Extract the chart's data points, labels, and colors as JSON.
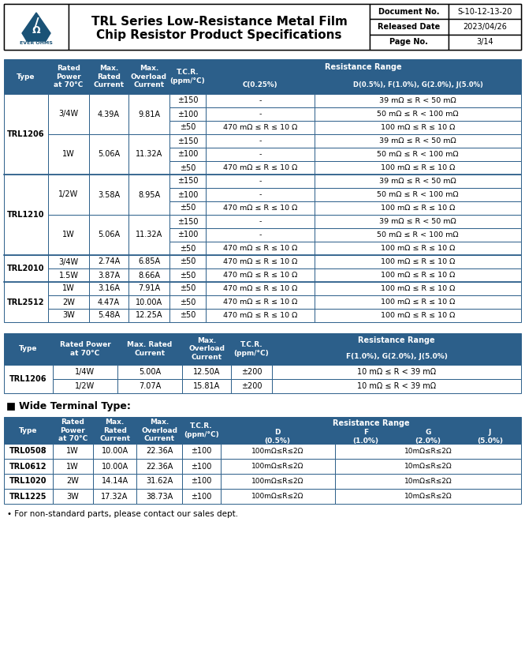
{
  "header_title_line1": "TRL Series Low-Resistance Metal Film",
  "header_title_line2": "Chip Resistor Product Specifications",
  "doc_no_label": "Document No.",
  "doc_no_value": "S-10-12-13-20",
  "released_date_label": "Released Date",
  "released_date_value": "2023/04/26",
  "page_no_label": "Page No.",
  "page_no_value": "3/14",
  "hdr_bg": "#2c5f8a",
  "white": "#ffffff",
  "black": "#000000",
  "border_color": "#2c5f8a",
  "table1_rows": [
    [
      "TRL1206",
      "3/4W",
      "4.39A",
      "9.81A",
      "±150",
      "-",
      "39 mΩ ≤ R < 50 mΩ"
    ],
    [
      "TRL1206",
      "3/4W",
      "4.39A",
      "9.81A",
      "±100",
      "-",
      "50 mΩ ≤ R < 100 mΩ"
    ],
    [
      "TRL1206",
      "3/4W",
      "4.39A",
      "9.81A",
      "±50",
      "470 mΩ ≤ R ≤ 10 Ω",
      "100 mΩ ≤ R ≤ 10 Ω"
    ],
    [
      "TRL1206",
      "1W",
      "5.06A",
      "11.32A",
      "±150",
      "-",
      "39 mΩ ≤ R < 50 mΩ"
    ],
    [
      "TRL1206",
      "1W",
      "5.06A",
      "11.32A",
      "±100",
      "-",
      "50 mΩ ≤ R < 100 mΩ"
    ],
    [
      "TRL1206",
      "1W",
      "5.06A",
      "11.32A",
      "±50",
      "470 mΩ ≤ R ≤ 10 Ω",
      "100 mΩ ≤ R ≤ 10 Ω"
    ],
    [
      "TRL1210",
      "1/2W",
      "3.58A",
      "8.95A",
      "±150",
      "-",
      "39 mΩ ≤ R < 50 mΩ"
    ],
    [
      "TRL1210",
      "1/2W",
      "3.58A",
      "8.95A",
      "±100",
      "-",
      "50 mΩ ≤ R < 100 mΩ"
    ],
    [
      "TRL1210",
      "1/2W",
      "3.58A",
      "8.95A",
      "±50",
      "470 mΩ ≤ R ≤ 10 Ω",
      "100 mΩ ≤ R ≤ 10 Ω"
    ],
    [
      "TRL1210",
      "1W",
      "5.06A",
      "11.32A",
      "±150",
      "-",
      "39 mΩ ≤ R < 50 mΩ"
    ],
    [
      "TRL1210",
      "1W",
      "5.06A",
      "11.32A",
      "±100",
      "-",
      "50 mΩ ≤ R < 100 mΩ"
    ],
    [
      "TRL1210",
      "1W",
      "5.06A",
      "11.32A",
      "±50",
      "470 mΩ ≤ R ≤ 10 Ω",
      "100 mΩ ≤ R ≤ 10 Ω"
    ],
    [
      "TRL2010",
      "3/4W",
      "2.74A",
      "6.85A",
      "±50",
      "470 mΩ ≤ R ≤ 10 Ω",
      "100 mΩ ≤ R ≤ 10 Ω"
    ],
    [
      "TRL2010",
      "1.5W",
      "3.87A",
      "8.66A",
      "±50",
      "470 mΩ ≤ R ≤ 10 Ω",
      "100 mΩ ≤ R ≤ 10 Ω"
    ],
    [
      "TRL2512",
      "1W",
      "3.16A",
      "7.91A",
      "±50",
      "470 mΩ ≤ R ≤ 10 Ω",
      "100 mΩ ≤ R ≤ 10 Ω"
    ],
    [
      "TRL2512",
      "2W",
      "4.47A",
      "10.00A",
      "±50",
      "470 mΩ ≤ R ≤ 10 Ω",
      "100 mΩ ≤ R ≤ 10 Ω"
    ],
    [
      "TRL2512",
      "3W",
      "5.48A",
      "12.25A",
      "±50",
      "470 mΩ ≤ R ≤ 10 Ω",
      "100 mΩ ≤ R ≤ 10 Ω"
    ]
  ],
  "table1_type_spans": [
    6,
    6,
    2,
    3
  ],
  "table1_type_starts": [
    0,
    6,
    12,
    14
  ],
  "table1_power_spans": [
    3,
    3,
    3,
    3,
    1,
    1,
    1,
    1,
    1
  ],
  "table1_power_starts": [
    0,
    3,
    6,
    9,
    12,
    13,
    14,
    15,
    16
  ],
  "table1_group_starts": [
    0,
    6,
    12,
    14
  ],
  "table2_rows": [
    [
      "TRL1206",
      "1/4W",
      "5.00A",
      "12.50A",
      "±200",
      "10 mΩ ≤ R < 39 mΩ"
    ],
    [
      "TRL1206",
      "1/2W",
      "7.07A",
      "15.81A",
      "±200",
      "10 mΩ ≤ R < 39 mΩ"
    ]
  ],
  "wide_terminal_title": "Wide Terminal Type:",
  "table3_rows": [
    [
      "TRL0508",
      "1W",
      "10.00A",
      "22.36A",
      "±100",
      "100mΩ≤R≤2Ω",
      "10mΩ≤R≤2Ω"
    ],
    [
      "TRL0612",
      "1W",
      "10.00A",
      "22.36A",
      "±100",
      "100mΩ≤R≤2Ω",
      "10mΩ≤R≤2Ω"
    ],
    [
      "TRL1020",
      "2W",
      "14.14A",
      "31.62A",
      "±100",
      "100mΩ≤R≤2Ω",
      "10mΩ≤R≤2Ω"
    ],
    [
      "TRL1225",
      "3W",
      "17.32A",
      "38.73A",
      "±100",
      "100mΩ≤R≤2Ω",
      "10mΩ≤R≤2Ω"
    ]
  ],
  "footnote": "• For non-standard parts, please contact our sales dept."
}
